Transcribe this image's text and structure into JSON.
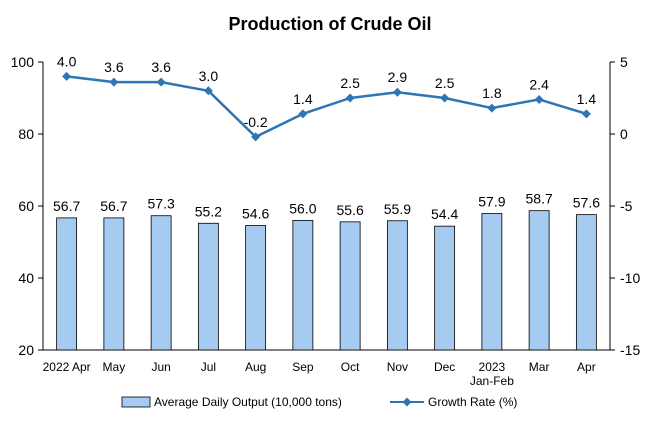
{
  "chart_data": {
    "type": "bar+line",
    "title": "Production of Crude Oil",
    "categories": [
      "2022 Apr",
      "May",
      "Jun",
      "Jul",
      "Aug",
      "Sep",
      "Oct",
      "Nov",
      "Dec",
      "2023 Jan-Feb",
      "Mar",
      "Apr"
    ],
    "category_lines": [
      [
        "2022 Apr"
      ],
      [
        "May"
      ],
      [
        "Jun"
      ],
      [
        "Jul"
      ],
      [
        "Aug"
      ],
      [
        "Sep"
      ],
      [
        "Oct"
      ],
      [
        "Nov"
      ],
      [
        "Dec"
      ],
      [
        "2023",
        "Jan-Feb"
      ],
      [
        "Mar"
      ],
      [
        "Apr"
      ]
    ],
    "series": [
      {
        "name": "Average Daily Output (10,000 tons)",
        "type": "bar",
        "axis": "left",
        "values": [
          56.7,
          56.7,
          57.3,
          55.2,
          54.6,
          56.0,
          55.6,
          55.9,
          54.4,
          57.9,
          58.7,
          57.6
        ],
        "labels": [
          "56.7",
          "56.7",
          "57.3",
          "55.2",
          "54.6",
          "56.0",
          "55.6",
          "55.9",
          "54.4",
          "57.9",
          "58.7",
          "57.6"
        ],
        "color": "#a6cbf0",
        "edge": "#000000"
      },
      {
        "name": "Growth Rate (%)",
        "type": "line",
        "axis": "right",
        "values": [
          4.0,
          3.6,
          3.6,
          3.0,
          -0.2,
          1.4,
          2.5,
          2.9,
          2.5,
          1.8,
          2.4,
          1.4
        ],
        "labels": [
          "4.0",
          "3.6",
          "3.6",
          "3.0",
          "-0.2",
          "1.4",
          "2.5",
          "2.9",
          "2.5",
          "1.8",
          "2.4",
          "1.4"
        ],
        "color": "#2e75b6"
      }
    ],
    "y_left": {
      "min": 20,
      "max": 100,
      "ticks": [
        20,
        40,
        60,
        80,
        100
      ]
    },
    "y_right": {
      "min": -15,
      "max": 5,
      "ticks": [
        -15,
        -10,
        -5,
        0,
        5
      ]
    },
    "legend_position": "bottom",
    "grid": false
  }
}
